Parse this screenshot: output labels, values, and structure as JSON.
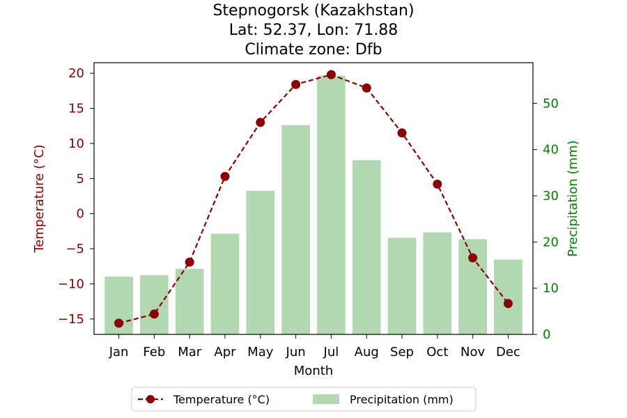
{
  "chart_data": {
    "type": "bar+line",
    "title_lines": [
      "Stepnogorsk (Kazakhstan)",
      "Lat: 52.37, Lon: 71.88",
      "Climate zone: Dfb"
    ],
    "xlabel": "Month",
    "categories": [
      "Jan",
      "Feb",
      "Mar",
      "Apr",
      "May",
      "Jun",
      "Jul",
      "Aug",
      "Sep",
      "Oct",
      "Nov",
      "Dec"
    ],
    "series": [
      {
        "name": "Temperature (°C)",
        "kind": "line",
        "axis": "left",
        "values": [
          -15.6,
          -14.3,
          -6.9,
          5.3,
          13.0,
          18.4,
          19.8,
          17.9,
          11.5,
          4.2,
          -6.3,
          -12.8
        ],
        "color": "#8b0000",
        "style": "dashed with circle markers"
      },
      {
        "name": "Precipitation (mm)",
        "kind": "bar",
        "axis": "right",
        "values": [
          12.5,
          12.8,
          14.2,
          21.8,
          31.1,
          45.3,
          56.0,
          37.7,
          20.9,
          22.1,
          20.6,
          16.2
        ],
        "color": "#b2d8b2"
      }
    ],
    "left_axis": {
      "label": "Temperature (°C)",
      "range": [
        -17.2,
        21.5
      ],
      "ticks": [
        -15,
        -10,
        -5,
        0,
        5,
        10,
        15,
        20
      ],
      "tick_labels": [
        "−15",
        "−10",
        "−5",
        "0",
        "5",
        "10",
        "15",
        "20"
      ],
      "color": "#8b0000"
    },
    "right_axis": {
      "label": "Precipitation (mm)",
      "range": [
        0,
        58.8
      ],
      "ticks": [
        0,
        10,
        20,
        30,
        40,
        50
      ],
      "tick_labels": [
        "0",
        "10",
        "20",
        "30",
        "40",
        "50"
      ],
      "color": "#008000"
    },
    "legend": {
      "placement": "bottom-center",
      "entries": [
        "Temperature (°C)",
        "Precipitation (mm)"
      ]
    },
    "grid": false
  }
}
